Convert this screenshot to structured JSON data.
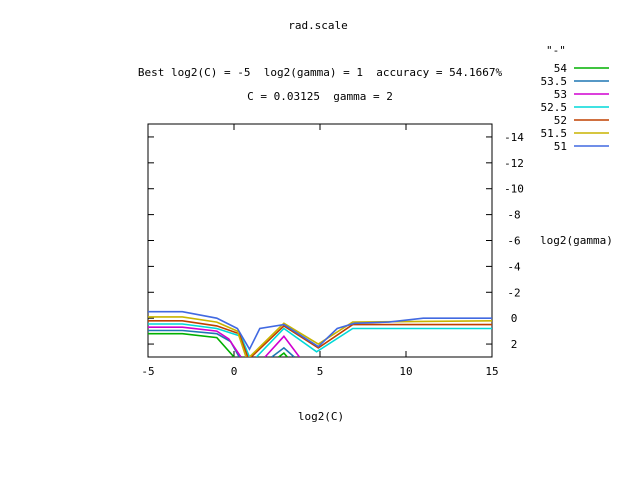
{
  "chart_data": {
    "type": "line",
    "title": "rad.scale",
    "subtitle_line1": "Best log2(C) = -5  log2(gamma) = 1  accuracy = 54.1667%",
    "subtitle_line2": "C = 0.03125  gamma = 2",
    "xlabel": "log2(C)",
    "ylabel": "log2(gamma)",
    "legend_title": "\"-\"",
    "legend_position": "top-right",
    "xlim": [
      -5,
      15
    ],
    "ylim": [
      3,
      -15
    ],
    "x_ticks": [
      -5,
      0,
      5,
      10,
      15
    ],
    "x_tick_labels": [
      "-5",
      "0",
      "5",
      "10",
      "15"
    ],
    "y_ticks": [
      2,
      0,
      -2,
      -4,
      -6,
      -8,
      -10,
      -12,
      -14
    ],
    "y_tick_labels": [
      "2",
      "0",
      "-2",
      "-4",
      "-6",
      "-8",
      "-10",
      "-12",
      "-14"
    ],
    "grid": false,
    "series": [
      {
        "name": "54",
        "color": "#00b000",
        "segments": [
          [
            [
              -5,
              1.2
            ],
            [
              -3,
              1.2
            ],
            [
              -1,
              1.5
            ],
            [
              0,
              3
            ]
          ],
          [
            [
              2.6,
              3
            ],
            [
              2.9,
              2.7
            ],
            [
              3.1,
              3
            ]
          ]
        ]
      },
      {
        "name": "53.5",
        "color": "#1f77b4",
        "segments": [
          [
            [
              -5,
              0.95
            ],
            [
              -3,
              0.95
            ],
            [
              -1,
              1.2
            ],
            [
              -0.2,
              1.8
            ],
            [
              0.3,
              3
            ]
          ],
          [
            [
              2.2,
              3
            ],
            [
              2.9,
              2.3
            ],
            [
              3.5,
              3
            ]
          ]
        ]
      },
      {
        "name": "53",
        "color": "#d000d0",
        "segments": [
          [
            [
              -5,
              0.7
            ],
            [
              -3,
              0.7
            ],
            [
              -1,
              1.0
            ],
            [
              -0.3,
              1.6
            ],
            [
              0.4,
              3
            ]
          ],
          [
            [
              1.8,
              3
            ],
            [
              2.9,
              1.4
            ],
            [
              3.8,
              3
            ]
          ]
        ]
      },
      {
        "name": "52.5",
        "color": "#00d8d8",
        "segments": [
          [
            [
              -5,
              0.45
            ],
            [
              -3,
              0.45
            ],
            [
              -1,
              0.8
            ],
            [
              0.4,
              1.4
            ],
            [
              0.9,
              3
            ]
          ],
          [
            [
              1.3,
              3
            ],
            [
              2.9,
              0.8
            ],
            [
              4.8,
              2.6
            ],
            [
              6.9,
              0.8
            ],
            [
              15,
              0.8
            ]
          ]
        ]
      },
      {
        "name": "52",
        "color": "#c04000",
        "segments": [
          [
            [
              -5,
              0.2
            ],
            [
              -3,
              0.2
            ],
            [
              -1,
              0.6
            ],
            [
              0.3,
              1.2
            ],
            [
              0.8,
              3
            ]
          ],
          [
            [
              1.0,
              3
            ],
            [
              2.9,
              0.6
            ],
            [
              4.9,
              2.3
            ],
            [
              6.9,
              0.5
            ],
            [
              15,
              0.5
            ]
          ]
        ]
      },
      {
        "name": "51.5",
        "color": "#c8b400",
        "segments": [
          [
            [
              -5,
              -0.1
            ],
            [
              -3,
              -0.1
            ],
            [
              -1,
              0.3
            ],
            [
              0.2,
              1.0
            ],
            [
              0.7,
              3
            ]
          ],
          [
            [
              0.9,
              3
            ],
            [
              2.9,
              0.4
            ],
            [
              4.9,
              2.0
            ],
            [
              6.9,
              0.3
            ],
            [
              15,
              0.2
            ]
          ]
        ]
      },
      {
        "name": "51",
        "color": "#4169e1",
        "segments": [
          [
            [
              -5,
              -0.5
            ],
            [
              -3,
              -0.5
            ],
            [
              -1,
              0
            ],
            [
              0.2,
              0.8
            ],
            [
              0.9,
              2.4
            ],
            [
              1.5,
              0.8
            ],
            [
              2.9,
              0.5
            ],
            [
              4.9,
              2.2
            ],
            [
              6,
              0.8
            ],
            [
              7,
              0.4
            ],
            [
              9,
              0.3
            ],
            [
              11,
              0
            ],
            [
              15,
              0
            ]
          ]
        ]
      }
    ]
  }
}
